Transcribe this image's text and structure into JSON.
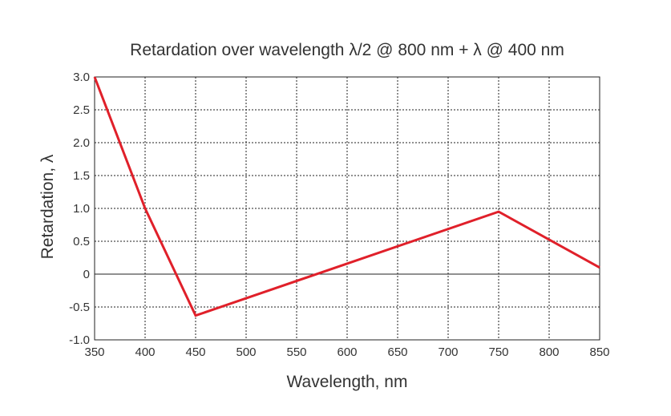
{
  "chart_data": {
    "type": "line",
    "title": "Retardation over wavelength λ/2 @ 800 nm + λ @ 400 nm",
    "xlabel": "Wavelength, nm",
    "ylabel": "Retardation, λ",
    "xlim": [
      350,
      850
    ],
    "ylim": [
      -1.0,
      3.0
    ],
    "x_ticks": [
      350,
      400,
      450,
      500,
      550,
      600,
      650,
      700,
      750,
      800,
      850
    ],
    "y_ticks": [
      -1.0,
      -0.5,
      0,
      0.5,
      1.0,
      1.5,
      2.0,
      2.5,
      3.0
    ],
    "x_tick_labels": [
      "350",
      "400",
      "450",
      "500",
      "550",
      "600",
      "650",
      "700",
      "750",
      "800",
      "850"
    ],
    "y_tick_labels": [
      "-1.0",
      "-0.5",
      "0",
      "0.5",
      "1.0",
      "1.5",
      "2.0",
      "2.5",
      "3.0"
    ],
    "grid": true,
    "series": [
      {
        "color": "#e0202a",
        "points": [
          {
            "x": 350,
            "y": 3.0
          },
          {
            "x": 400,
            "y": 1.0
          },
          {
            "x": 450,
            "y": -0.63
          },
          {
            "x": 750,
            "y": 0.95
          },
          {
            "x": 850,
            "y": 0.1
          }
        ]
      }
    ]
  }
}
